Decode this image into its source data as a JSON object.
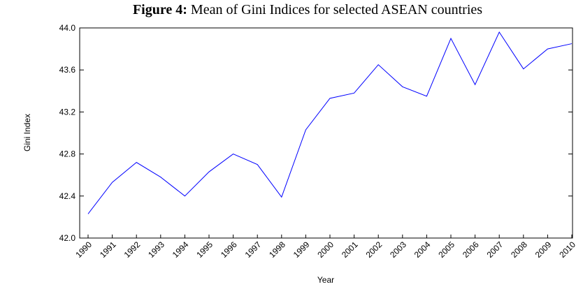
{
  "chart_data": {
    "type": "line",
    "figure_label": "Figure 4:",
    "title": "Mean of Gini Indices for selected ASEAN countries",
    "y_label": "Gini Index",
    "x_label": "Year",
    "categories": [
      "1990",
      "1991",
      "1992",
      "1993",
      "1994",
      "1995",
      "1996",
      "1997",
      "1998",
      "1999",
      "2000",
      "2001",
      "2002",
      "2003",
      "2004",
      "2005",
      "2006",
      "2007",
      "2008",
      "2009",
      "2010"
    ],
    "values": [
      42.23,
      42.53,
      42.72,
      42.58,
      42.4,
      42.63,
      42.8,
      42.7,
      42.39,
      43.03,
      43.33,
      43.38,
      43.65,
      43.44,
      43.35,
      43.9,
      43.46,
      43.96,
      43.61,
      43.8,
      43.85
    ],
    "color": "#0000ff",
    "ylim": [
      42.0,
      44.0
    ],
    "yticks": [
      {
        "value": 42.0,
        "label": "42.0"
      },
      42.4,
      42.8,
      43.2,
      43.6,
      {
        "value": 44.0,
        "label": "44.0"
      }
    ],
    "grid": false
  }
}
